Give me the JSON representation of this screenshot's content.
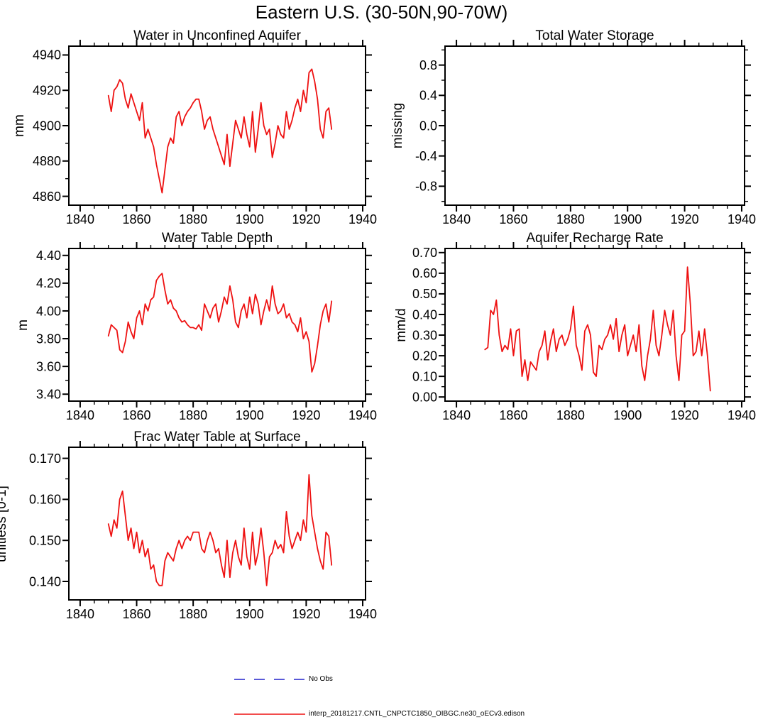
{
  "title": "Eastern U.S. (30-50N,90-70W)",
  "colors": {
    "series": "#ee1111",
    "no_obs": "#2222cc",
    "axis": "#000000"
  },
  "legend": [
    {
      "label": "No Obs",
      "color": "#2222cc",
      "style": "dashed"
    },
    {
      "label": "interp_20181217.CNTL_CNPCTC1850_OIBGC.ne30_oECv3.edison",
      "color": "#ee1111",
      "style": "solid"
    }
  ],
  "chart_data": [
    {
      "type": "line",
      "title": "Water in Unconfined Aquifer",
      "xlabel": "",
      "ylabel": "mm",
      "xlim": [
        1836,
        1941
      ],
      "ylim": [
        4855,
        4945
      ],
      "xticks": [
        1840,
        1860,
        1880,
        1900,
        1920,
        1940
      ],
      "yticks": [
        4860,
        4880,
        4900,
        4920,
        4940
      ],
      "xtick_decimals": 0,
      "ytick_decimals": 0,
      "x_minor_step": 5,
      "y_minor_step": 10,
      "x_start": 1850,
      "x_step": 1,
      "values": [
        4917,
        4908,
        4920,
        4922,
        4926,
        4924,
        4915,
        4910,
        4918,
        4913,
        4908,
        4903,
        4913,
        4893,
        4898,
        4893,
        4888,
        4878,
        4870,
        4862,
        4875,
        4888,
        4893,
        4890,
        4905,
        4908,
        4900,
        4905,
        4908,
        4910,
        4913,
        4915,
        4915,
        4908,
        4898,
        4903,
        4905,
        4898,
        4893,
        4888,
        4883,
        4878,
        4895,
        4877,
        4890,
        4903,
        4898,
        4893,
        4905,
        4895,
        4888,
        4908,
        4885,
        4898,
        4913,
        4900,
        4895,
        4898,
        4882,
        4890,
        4900,
        4895,
        4893,
        4908,
        4898,
        4903,
        4910,
        4915,
        4908,
        4920,
        4913,
        4930,
        4932,
        4925,
        4915,
        4898,
        4893,
        4908,
        4910,
        4898
      ]
    },
    {
      "type": "line",
      "title": "Total Water Storage",
      "xlabel": "",
      "ylabel": "missing",
      "xlim": [
        1836,
        1941
      ],
      "ylim": [
        -1.05,
        1.05
      ],
      "xticks": [
        1840,
        1860,
        1880,
        1900,
        1920,
        1940
      ],
      "yticks": [
        -0.8,
        -0.4,
        0.0,
        0.4,
        0.8
      ],
      "xtick_decimals": 0,
      "ytick_decimals": 1,
      "x_minor_step": 5,
      "y_minor_step": 0.2,
      "x_start": null,
      "x_step": 1,
      "values": []
    },
    {
      "type": "line",
      "title": "Water Table Depth",
      "xlabel": "",
      "ylabel": "m",
      "xlim": [
        1836,
        1941
      ],
      "ylim": [
        3.35,
        4.45
      ],
      "xticks": [
        1840,
        1860,
        1880,
        1900,
        1920,
        1940
      ],
      "yticks": [
        3.4,
        3.6,
        3.8,
        4.0,
        4.2,
        4.4
      ],
      "xtick_decimals": 2,
      "ytick_decimals": 2,
      "x_minor_step": 5,
      "y_minor_step": 0.1,
      "x_start": 1850,
      "x_step": 1,
      "values": [
        3.82,
        3.9,
        3.88,
        3.86,
        3.72,
        3.7,
        3.78,
        3.92,
        3.85,
        3.8,
        3.95,
        4.0,
        3.9,
        4.05,
        4.0,
        4.08,
        4.1,
        4.22,
        4.25,
        4.27,
        4.15,
        4.05,
        4.08,
        4.02,
        4.0,
        3.95,
        3.92,
        3.93,
        3.9,
        3.88,
        3.88,
        3.87,
        3.9,
        3.86,
        4.05,
        4.0,
        3.95,
        4.02,
        4.05,
        3.92,
        4.0,
        4.1,
        4.05,
        4.18,
        4.08,
        3.92,
        3.88,
        4.0,
        4.05,
        3.95,
        4.1,
        3.98,
        4.12,
        4.05,
        3.9,
        4.0,
        4.08,
        4.0,
        4.18,
        4.05,
        3.98,
        4.0,
        4.05,
        3.95,
        3.98,
        3.92,
        3.9,
        3.85,
        3.95,
        3.8,
        3.85,
        3.78,
        3.56,
        3.62,
        3.75,
        3.9,
        4.0,
        4.05,
        3.92,
        4.07
      ]
    },
    {
      "type": "line",
      "title": "Aquifer Recharge Rate",
      "xlabel": "",
      "ylabel": "mm/d",
      "xlim": [
        1836,
        1941
      ],
      "ylim": [
        -0.02,
        0.72
      ],
      "xticks": [
        1840,
        1860,
        1880,
        1900,
        1920,
        1940
      ],
      "yticks": [
        0.0,
        0.1,
        0.2,
        0.3,
        0.4,
        0.5,
        0.6,
        0.7
      ],
      "xtick_decimals": 0,
      "ytick_decimals": 2,
      "x_minor_step": 5,
      "y_minor_step": 0.05,
      "x_start": 1850,
      "x_step": 1,
      "values": [
        0.23,
        0.24,
        0.42,
        0.4,
        0.47,
        0.3,
        0.22,
        0.25,
        0.23,
        0.33,
        0.2,
        0.32,
        0.33,
        0.1,
        0.18,
        0.08,
        0.17,
        0.15,
        0.13,
        0.22,
        0.25,
        0.32,
        0.18,
        0.27,
        0.33,
        0.22,
        0.28,
        0.3,
        0.25,
        0.28,
        0.33,
        0.44,
        0.25,
        0.2,
        0.13,
        0.32,
        0.35,
        0.3,
        0.12,
        0.1,
        0.25,
        0.23,
        0.28,
        0.3,
        0.35,
        0.28,
        0.38,
        0.22,
        0.3,
        0.35,
        0.2,
        0.25,
        0.3,
        0.22,
        0.35,
        0.15,
        0.08,
        0.2,
        0.28,
        0.42,
        0.25,
        0.2,
        0.3,
        0.42,
        0.35,
        0.3,
        0.42,
        0.2,
        0.08,
        0.3,
        0.32,
        0.63,
        0.45,
        0.2,
        0.22,
        0.32,
        0.2,
        0.33,
        0.2,
        0.03
      ]
    },
    {
      "type": "line",
      "title": "Frac Water Table at Surface",
      "xlabel": "",
      "ylabel": "unitless [0-1]",
      "xlim": [
        1836,
        1941
      ],
      "ylim": [
        0.1355,
        0.1727
      ],
      "xticks": [
        1840,
        1860,
        1880,
        1900,
        1920,
        1940
      ],
      "yticks": [
        0.14,
        0.15,
        0.16,
        0.17
      ],
      "xtick_decimals": 0,
      "ytick_decimals": 3,
      "x_minor_step": 5,
      "y_minor_step": 0.005,
      "x_start": 1850,
      "x_step": 1,
      "values": [
        0.154,
        0.151,
        0.155,
        0.153,
        0.16,
        0.162,
        0.156,
        0.15,
        0.153,
        0.148,
        0.152,
        0.147,
        0.15,
        0.146,
        0.148,
        0.143,
        0.144,
        0.14,
        0.139,
        0.139,
        0.145,
        0.147,
        0.146,
        0.145,
        0.148,
        0.15,
        0.148,
        0.15,
        0.151,
        0.15,
        0.152,
        0.152,
        0.152,
        0.148,
        0.147,
        0.15,
        0.152,
        0.15,
        0.147,
        0.148,
        0.144,
        0.141,
        0.15,
        0.141,
        0.147,
        0.15,
        0.146,
        0.144,
        0.153,
        0.146,
        0.143,
        0.152,
        0.144,
        0.147,
        0.153,
        0.147,
        0.139,
        0.146,
        0.147,
        0.15,
        0.148,
        0.149,
        0.147,
        0.157,
        0.151,
        0.148,
        0.15,
        0.152,
        0.15,
        0.155,
        0.152,
        0.166,
        0.156,
        0.152,
        0.148,
        0.145,
        0.143,
        0.152,
        0.151,
        0.144
      ]
    }
  ]
}
